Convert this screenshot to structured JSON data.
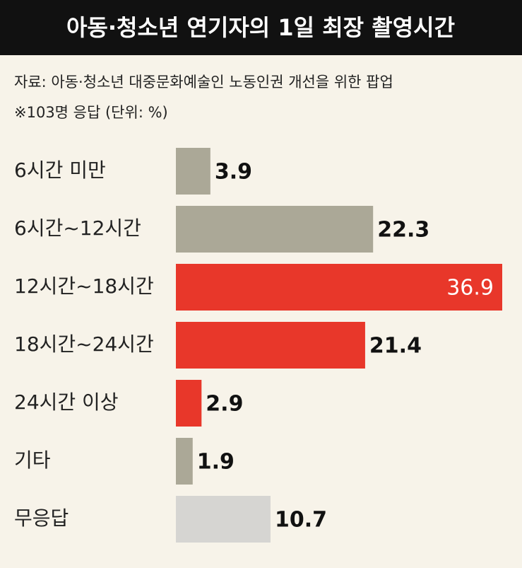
{
  "chart_data": {
    "type": "bar",
    "orientation": "horizontal",
    "title": "아동·청소년 연기자의 1일 최장 촬영시간",
    "subtitle": [
      "자료: 아동·청소년 대중문화예술인 노동인권 개선을 위한 팝업",
      "※103명 응답 (단위: %)"
    ],
    "categories": [
      "6시간 미만",
      "6시간~12시간",
      "12시간~18시간",
      "18시간~24시간",
      "24시간 이상",
      "기타",
      "무응답"
    ],
    "values": [
      3.9,
      22.3,
      36.9,
      21.4,
      2.9,
      1.9,
      10.7
    ],
    "colors": [
      "#aba897",
      "#aba897",
      "#e8372a",
      "#e8372a",
      "#e8372a",
      "#aba897",
      "#d6d5d2"
    ]
  }
}
